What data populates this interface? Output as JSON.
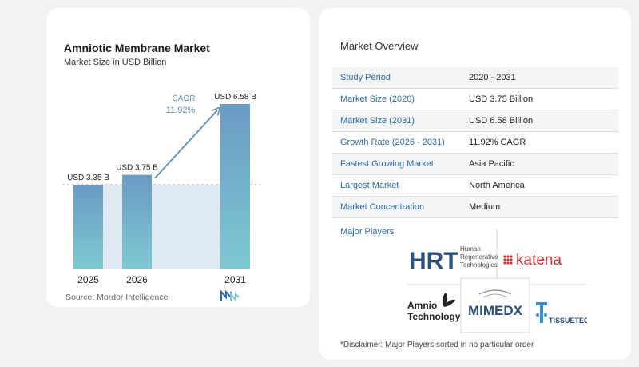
{
  "chart": {
    "title": "Amniotic Membrane Market",
    "subtitle": "Market Size in USD Billion",
    "source_label": "Source:",
    "source_name": "Mordor Intelligence",
    "cagr_label": "CAGR",
    "cagr_value": "11.92%"
  },
  "chart_data": {
    "type": "bar",
    "title": "Amniotic Membrane Market",
    "subtitle": "Market Size in USD Billion",
    "categories": [
      "2025",
      "2026",
      "2031"
    ],
    "values": [
      3.35,
      3.75,
      6.58
    ],
    "data_labels": [
      "USD 3.35 B",
      "USD 3.75 B",
      "USD 6.58 B"
    ],
    "ylim": [
      0,
      7
    ],
    "grid": false,
    "bar_colors": [
      "#6a9bc4",
      "#6a9bc4",
      "#6a9bc4"
    ],
    "bar_color_bottom": "#7ec8d2",
    "annotation": {
      "label": "CAGR",
      "value": "11.92%"
    }
  },
  "overview": {
    "title": "Market Overview",
    "rows": [
      {
        "key": "Study Period",
        "value": "2020 - 2031"
      },
      {
        "key": "Market Size (2026)",
        "value": "USD 3.75 Billion"
      },
      {
        "key": "Market Size (2031)",
        "value": "USD 6.58 Billion"
      },
      {
        "key": "Growth Rate (2026 - 2031)",
        "value": "11.92% CAGR"
      },
      {
        "key": "Fastest Growing Market",
        "value": "Asia Pacific"
      },
      {
        "key": "Largest Market",
        "value": "North America"
      },
      {
        "key": "Market Concentration",
        "value": "Medium"
      }
    ]
  },
  "players": {
    "title": "Major Players",
    "logos": [
      "HRT Human Regenerative Technologies",
      "katena",
      "Amnio Technology",
      "MIMEDX",
      "TISSUETECH"
    ],
    "hrt_abbr": "HRT",
    "hrt_line1": "Human",
    "hrt_line2": "Regenerative",
    "hrt_line3": "Technologies",
    "katena": "katena",
    "amnio_line1": "Amnio",
    "amnio_line2": "Technology",
    "mimedx": "MIMEDX",
    "tissuetech": "TISSUETECH",
    "disclaimer": "*Disclaimer: Major Players sorted in no particular order"
  },
  "colors": {
    "accent": "#2b6aa6",
    "bar_top": "#6a9bc4",
    "bar_bottom": "#7ec8d2",
    "arrow": "#5a8fbd",
    "shade": "#dfe9f2"
  }
}
